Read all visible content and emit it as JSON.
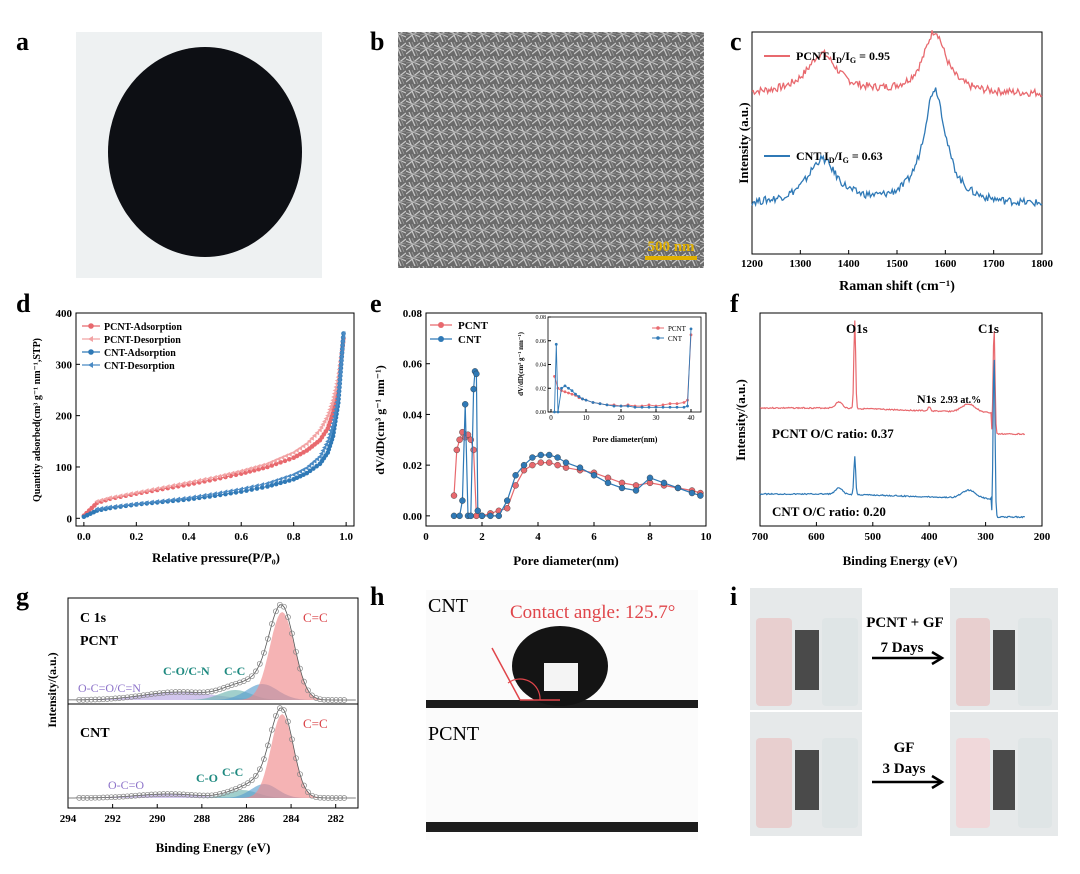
{
  "panel_labels": [
    "a",
    "b",
    "c",
    "d",
    "e",
    "f",
    "g",
    "h",
    "i"
  ],
  "colors": {
    "pcnt": "#e8696e",
    "cnt": "#2f79b6",
    "pcnt_light": "#f2a3a4",
    "cnt_light": "#4a8ac4"
  },
  "panel_b": {
    "scale_bar": "500 nm"
  },
  "panel_h": {
    "top_label": "CNT",
    "angle_text": "Contact angle: 125.7°",
    "bottom_label": "PCNT"
  },
  "panel_i": {
    "label_top": "PCNT + GF",
    "days_top": "7 Days",
    "label_bottom": "GF",
    "days_bottom": "3 Days"
  },
  "chart_data": [
    {
      "id": "c",
      "type": "line",
      "xlabel": "Raman shift (cm⁻¹)",
      "ylabel": "Intensity (a.u.)",
      "xlim": [
        1200,
        1800
      ],
      "xticks": [
        1200,
        1300,
        1400,
        1500,
        1600,
        1700,
        1800
      ],
      "series": [
        {
          "name": "PCNT",
          "annotation": "PCNT  I_D/I_G = 0.95",
          "ratio": "0.95",
          "peaks": [
            {
              "x": 1345,
              "h": 0.18
            },
            {
              "x": 1578,
              "h": 0.28
            }
          ],
          "baseline": 0.72
        },
        {
          "name": "CNT",
          "annotation": "CNT  I_D/I_G = 0.63",
          "ratio": "0.63",
          "peaks": [
            {
              "x": 1345,
              "h": 0.2
            },
            {
              "x": 1578,
              "h": 0.52
            }
          ],
          "baseline": 0.22
        }
      ],
      "legend_labels": {
        "pcnt": "PCNT  I",
        "cnt": "CNT  I",
        "d": "D",
        "g": "G",
        "pcnt_val": " = 0.95",
        "cnt_val": " = 0.63",
        "slash": "/I"
      }
    },
    {
      "id": "d",
      "type": "line",
      "xlabel": "Relative pressure(P/P₀)",
      "ylabel": "Quantity adsorbed(cm³ g⁻¹ nm⁻¹,STP)",
      "xlim": [
        0,
        1.0
      ],
      "ylim": [
        0,
        400
      ],
      "xticks": [
        0.0,
        0.2,
        0.4,
        0.6,
        0.8,
        1.0
      ],
      "yticks": [
        0,
        100,
        200,
        300,
        400
      ],
      "series": [
        {
          "name": "PCNT-Adsorption",
          "x": [
            0.0,
            0.05,
            0.1,
            0.2,
            0.3,
            0.4,
            0.5,
            0.6,
            0.7,
            0.8,
            0.85,
            0.9,
            0.93,
            0.95,
            0.97,
            0.99
          ],
          "y": [
            5,
            30,
            38,
            48,
            57,
            66,
            76,
            87,
            100,
            118,
            132,
            152,
            175,
            205,
            260,
            350
          ]
        },
        {
          "name": "PCNT-Desorption",
          "x": [
            0.99,
            0.97,
            0.95,
            0.93,
            0.9,
            0.85,
            0.8,
            0.7,
            0.6,
            0.5,
            0.4,
            0.3,
            0.2,
            0.1,
            0.05
          ],
          "y": [
            350,
            275,
            230,
            200,
            172,
            145,
            128,
            106,
            92,
            80,
            70,
            60,
            50,
            40,
            33
          ]
        },
        {
          "name": "CNT-Adsorption",
          "x": [
            0.0,
            0.05,
            0.1,
            0.2,
            0.3,
            0.4,
            0.5,
            0.6,
            0.7,
            0.8,
            0.85,
            0.9,
            0.93,
            0.95,
            0.97,
            0.99
          ],
          "y": [
            3,
            15,
            20,
            27,
            32,
            37,
            44,
            52,
            62,
            76,
            88,
            106,
            128,
            160,
            225,
            360
          ]
        },
        {
          "name": "CNT-Desorption",
          "x": [
            0.99,
            0.97,
            0.95,
            0.93,
            0.9,
            0.85,
            0.8,
            0.7,
            0.6,
            0.5,
            0.4,
            0.3,
            0.2,
            0.1,
            0.05
          ],
          "y": [
            360,
            240,
            185,
            150,
            120,
            98,
            85,
            68,
            57,
            48,
            40,
            34,
            28,
            22,
            18
          ]
        }
      ]
    },
    {
      "id": "e",
      "type": "scatter",
      "xlabel": "Pore diameter(nm)",
      "ylabel": "dV/dD(cm³ g⁻¹ nm⁻¹)",
      "xlim": [
        0,
        10
      ],
      "ylim": [
        -0.004,
        0.08
      ],
      "xticks": [
        0,
        2,
        4,
        6,
        8,
        10
      ],
      "yticks": [
        0.0,
        0.02,
        0.04,
        0.06,
        0.08
      ],
      "series": [
        {
          "name": "PCNT",
          "x": [
            1.0,
            1.1,
            1.2,
            1.3,
            1.4,
            1.5,
            1.6,
            1.7,
            1.8,
            2.0,
            2.3,
            2.6,
            2.9,
            3.2,
            3.5,
            3.8,
            4.1,
            4.4,
            4.7,
            5.0,
            5.5,
            6.0,
            6.5,
            7.0,
            7.5,
            8.0,
            8.5,
            9.0,
            9.5,
            9.8
          ],
          "y": [
            0.008,
            0.026,
            0.03,
            0.033,
            0.031,
            0.032,
            0.03,
            0.026,
            0.0,
            0.0,
            0.001,
            0.002,
            0.003,
            0.012,
            0.018,
            0.02,
            0.021,
            0.021,
            0.02,
            0.019,
            0.018,
            0.017,
            0.015,
            0.013,
            0.012,
            0.013,
            0.012,
            0.011,
            0.01,
            0.009
          ]
        },
        {
          "name": "CNT",
          "x": [
            1.0,
            1.2,
            1.3,
            1.4,
            1.5,
            1.6,
            1.7,
            1.75,
            1.8,
            1.85,
            2.0,
            2.3,
            2.6,
            2.9,
            3.2,
            3.5,
            3.8,
            4.1,
            4.4,
            4.7,
            5.0,
            5.5,
            6.0,
            6.5,
            7.0,
            7.5,
            8.0,
            8.5,
            9.0,
            9.5,
            9.8
          ],
          "y": [
            0.0,
            0.0,
            0.006,
            0.044,
            0.0,
            0.0,
            0.05,
            0.057,
            0.056,
            0.002,
            0.0,
            0.0,
            0.0,
            0.006,
            0.016,
            0.02,
            0.023,
            0.024,
            0.024,
            0.023,
            0.021,
            0.019,
            0.016,
            0.013,
            0.011,
            0.01,
            0.015,
            0.013,
            0.011,
            0.009,
            0.008
          ]
        }
      ],
      "inset": {
        "xlabel": "Pore diameter(nm)",
        "ylabel": "dV/dD(cm³ g⁻¹ nm⁻¹)",
        "xlim": [
          0,
          42
        ],
        "ylim": [
          0,
          0.08
        ],
        "xticks": [
          0,
          10,
          20,
          30,
          40
        ],
        "yticks": [
          0.0,
          0.02,
          0.04,
          0.06,
          0.08
        ],
        "series": [
          {
            "name": "PCNT",
            "x": [
              1,
              2,
              3,
              4,
              5,
              6,
              7,
              8,
              9,
              10,
              12,
              14,
              16,
              18,
              20,
              22,
              24,
              26,
              28,
              30,
              32,
              34,
              36,
              38,
              39,
              40
            ],
            "y": [
              0.03,
              0.02,
              0.018,
              0.017,
              0.016,
              0.015,
              0.014,
              0.012,
              0.011,
              0.01,
              0.008,
              0.007,
              0.006,
              0.006,
              0.005,
              0.006,
              0.005,
              0.005,
              0.006,
              0.005,
              0.006,
              0.007,
              0.007,
              0.008,
              0.01,
              0.065
            ]
          },
          {
            "name": "CNT",
            "x": [
              1,
              1.5,
              2,
              3,
              4,
              5,
              6,
              7,
              8,
              9,
              10,
              12,
              14,
              16,
              18,
              20,
              22,
              24,
              26,
              28,
              30,
              32,
              34,
              36,
              38,
              39,
              40
            ],
            "y": [
              0.0,
              0.057,
              0.0,
              0.02,
              0.022,
              0.02,
              0.018,
              0.015,
              0.013,
              0.011,
              0.01,
              0.008,
              0.007,
              0.006,
              0.005,
              0.005,
              0.005,
              0.004,
              0.004,
              0.004,
              0.004,
              0.004,
              0.004,
              0.004,
              0.004,
              0.005,
              0.07
            ]
          }
        ]
      }
    },
    {
      "id": "f",
      "type": "line",
      "xlabel": "Binding Energy (eV)",
      "ylabel": "Intensity/(a.u.)",
      "xlim": [
        700,
        200
      ],
      "xticks": [
        700,
        600,
        500,
        400,
        300,
        200
      ],
      "annotations": {
        "o1s": "O1s",
        "c1s": "C1s",
        "n1s": "N1s",
        "n1s_val": "2.93 at.%",
        "pcnt_ratio": "PCNT   O/C ratio: 0.37",
        "cnt_ratio": "CNT   O/C ratio: 0.20"
      }
    },
    {
      "id": "g",
      "type": "line",
      "xlabel": "Binding Energy (eV)",
      "ylabel": "Intensity/(a.u.)",
      "xlim": [
        294,
        281
      ],
      "xticks": [
        294,
        292,
        290,
        288,
        286,
        284,
        282
      ],
      "annotations": {
        "c1s": "C 1s",
        "pcnt": "PCNT",
        "cnt": "CNT",
        "cc_double": "C=C",
        "oco_cn": "O-C=O/C=N",
        "co_cn": "C-O/C-N",
        "cc": "C-C",
        "co": "C-O",
        "oco": "O-C=O"
      }
    }
  ]
}
